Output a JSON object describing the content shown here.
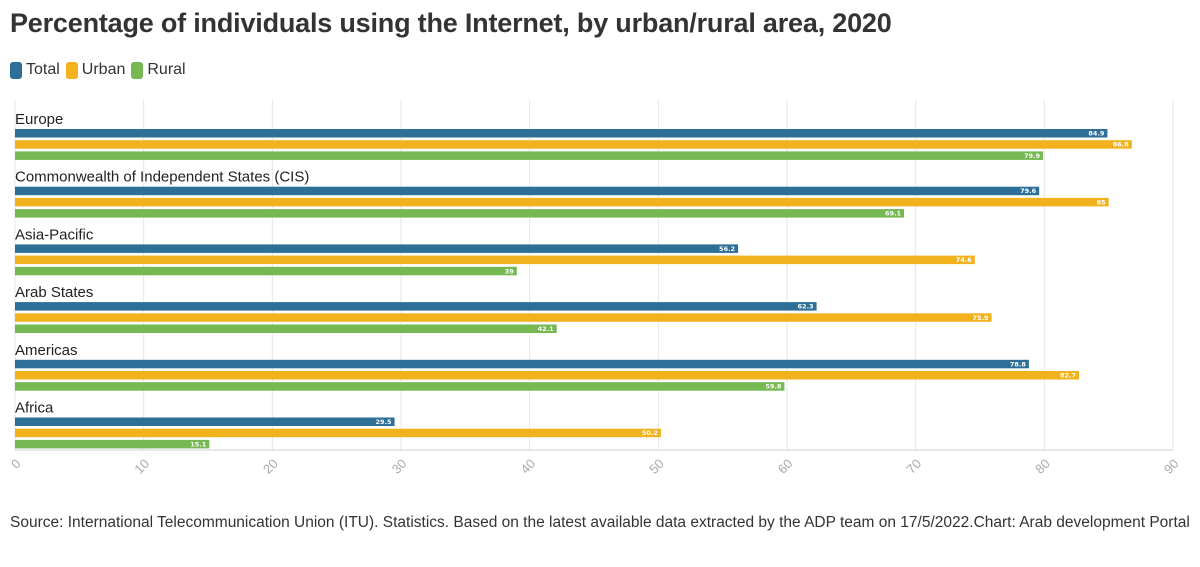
{
  "title": "Percentage of individuals using the Internet, by urban/rural area, 2020",
  "source": {
    "text": "Source: International Telecommunication Union (ITU). Statistics. Based on the latest available data extracted by the ADP team on 17/5/2022.",
    "chart_credit": "Chart: Arab development Portal"
  },
  "colors": {
    "Total": "#2e6f97",
    "Urban": "#f2b21e",
    "Rural": "#76b852",
    "grid": "#e6e6e6",
    "axis": "#d0d0d0"
  },
  "chart_data": {
    "type": "bar",
    "orientation": "horizontal",
    "title": "Percentage of individuals using the Internet, by urban/rural area, 2020",
    "categories": [
      "Europe",
      "Commonwealth of Independent States (CIS)",
      "Asia-Pacific",
      "Arab States",
      "Americas",
      "Africa"
    ],
    "series": [
      {
        "name": "Total",
        "values": [
          84.9,
          79.6,
          56.2,
          62.3,
          78.8,
          29.5
        ]
      },
      {
        "name": "Urban",
        "values": [
          86.8,
          85,
          74.6,
          75.9,
          82.7,
          50.2
        ]
      },
      {
        "name": "Rural",
        "values": [
          79.9,
          69.1,
          39,
          42.1,
          59.8,
          15.1
        ]
      }
    ],
    "xlim": [
      0,
      90
    ],
    "xticks": [
      "0",
      "10",
      "20",
      "30",
      "40",
      "50",
      "60",
      "70",
      "80",
      "90"
    ],
    "grid": true,
    "legend": "top-left",
    "data_labels": true
  }
}
